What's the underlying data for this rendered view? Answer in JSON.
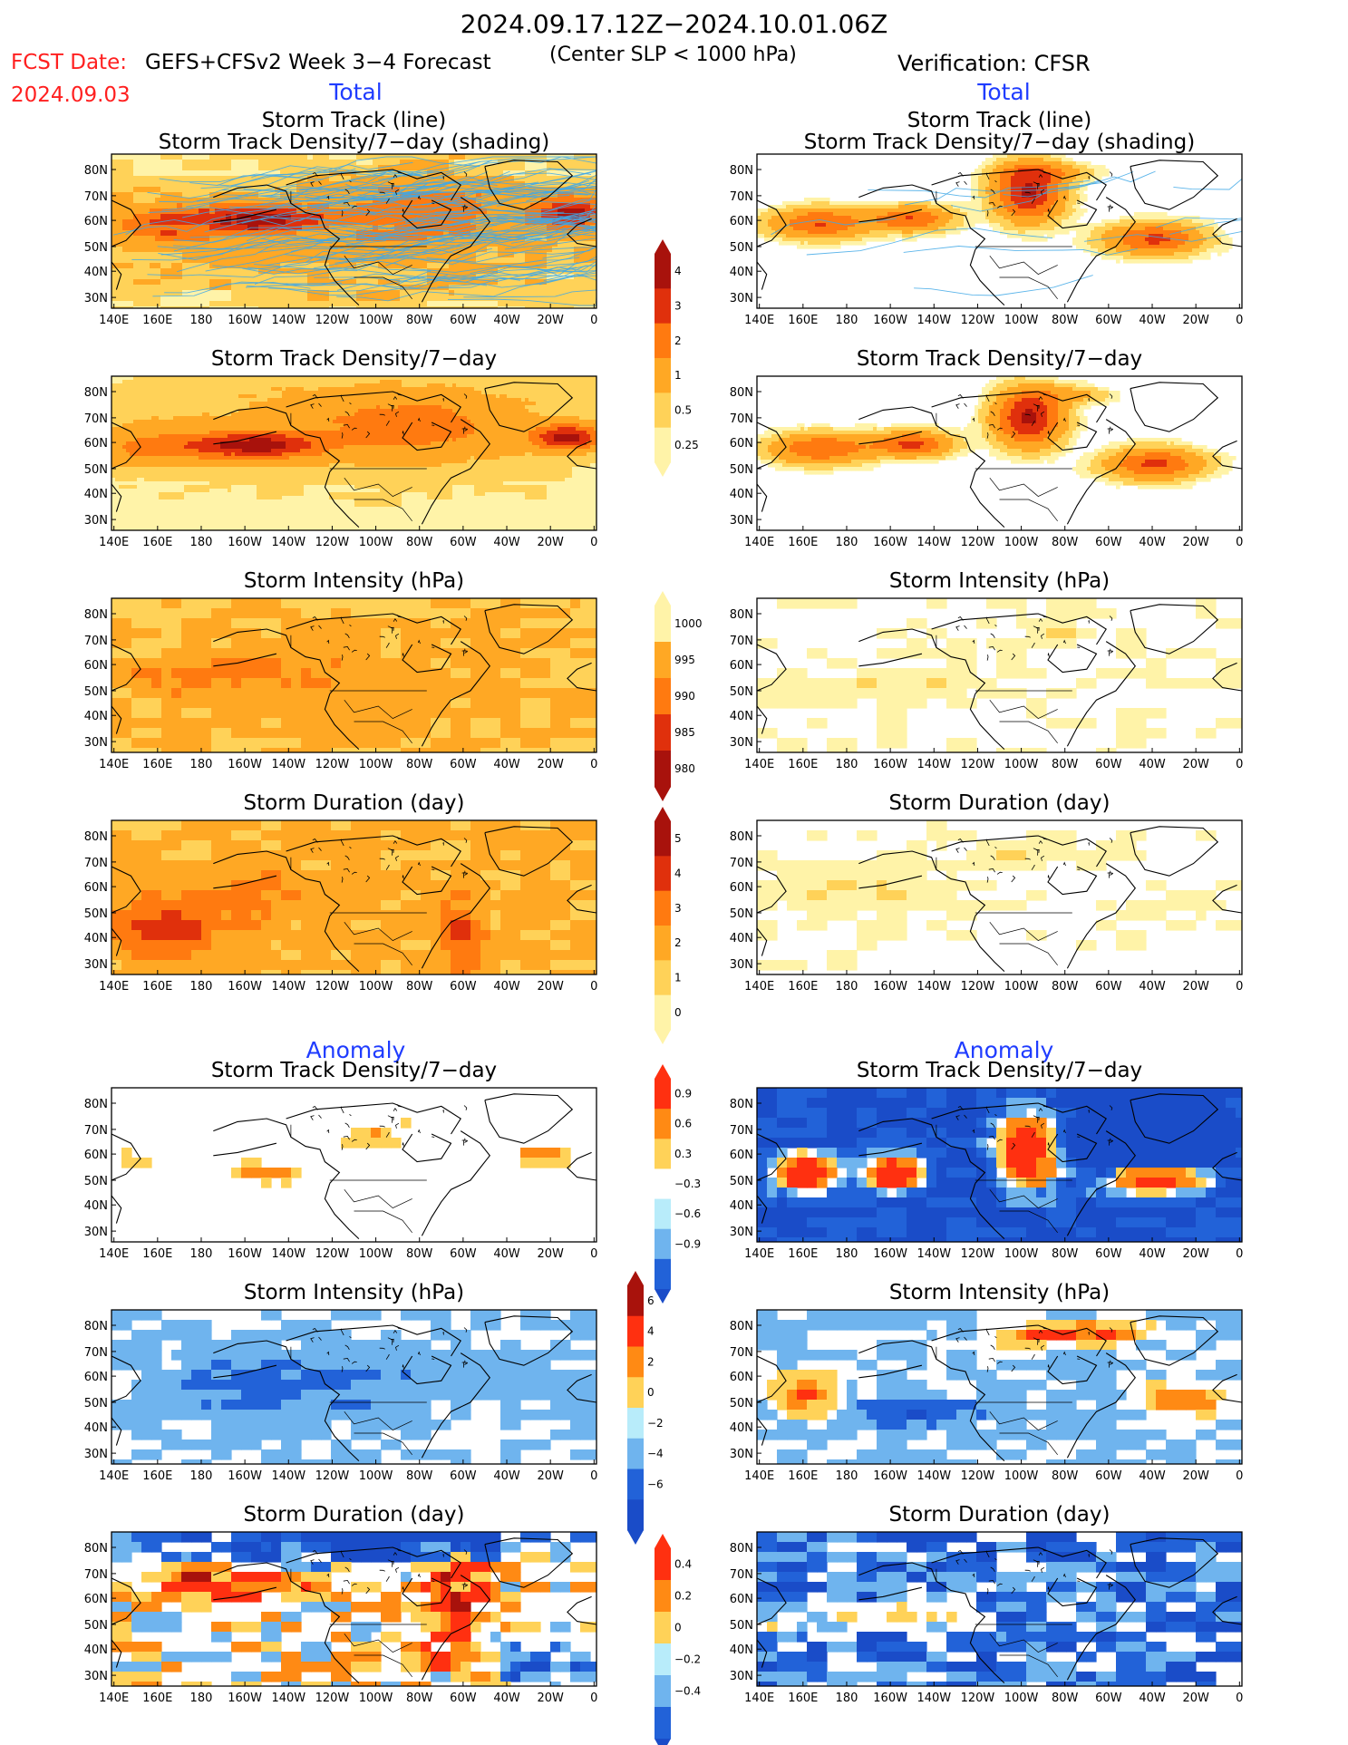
{
  "header": {
    "period": "2024.09.17.12Z−2024.10.01.06Z",
    "fcst_label": "FCST Date:",
    "fcst_date": "2024.09.03",
    "model": "GEFS+CFSv2 Week 3−4 Forecast",
    "criterion": "(Center SLP < 1000 hPa)",
    "verification": "Verification: CFSR",
    "left_total": "Total",
    "right_total": "Total",
    "left_anomaly": "Anomaly",
    "right_anomaly": "Anomaly"
  },
  "colors": {
    "header_red": "#ff2020",
    "section_blue": "#1f3cff",
    "track_line": "#3fa8e6"
  },
  "axes": {
    "lon_labels": [
      "140E",
      "160E",
      "180",
      "160W",
      "140W",
      "120W",
      "100W",
      "80W",
      "60W",
      "40W",
      "20W",
      "0"
    ],
    "lat_labels": [
      "80N",
      "70N",
      "60N",
      "50N",
      "40N",
      "30N"
    ]
  },
  "panels": {
    "track": {
      "title1": "Storm Track (line)",
      "title2": "Storm Track Density/7−day (shading)"
    },
    "density": {
      "title": "Storm Track Density/7−day"
    },
    "intensity": {
      "title": "Storm Intensity (hPa)"
    },
    "duration": {
      "title": "Storm Duration (day)"
    },
    "anom_density": {
      "title": "Storm Track Density/7−day"
    },
    "anom_intensity": {
      "title": "Storm Intensity (hPa)"
    },
    "anom_duration": {
      "title": "Storm Duration (day)"
    }
  },
  "colorbars": {
    "density": {
      "labels": [
        "4",
        "3",
        "2",
        "1",
        "0.5",
        "0.25"
      ],
      "colors": [
        "#a8120c",
        "#e0300c",
        "#ff7a10",
        "#ffa824",
        "#ffd258",
        "#fff3a8"
      ]
    },
    "intensity": {
      "labels": [
        "1000",
        "995",
        "990",
        "985",
        "980"
      ],
      "colors": [
        "#fff3a8",
        "#ffa824",
        "#ff7a10",
        "#e0300c",
        "#a8120c"
      ]
    },
    "duration": {
      "labels": [
        "5",
        "4",
        "3",
        "2",
        "1",
        "0"
      ],
      "colors": [
        "#a8120c",
        "#e0300c",
        "#ff7a10",
        "#ffa824",
        "#ffd258",
        "#fff3a8"
      ]
    },
    "anom_density": {
      "labels": [
        "0.9",
        "0.6",
        "0.3",
        "−0.3",
        "−0.6",
        "−0.9"
      ],
      "colors": [
        "#ff3010",
        "#ff8a14",
        "#ffd258",
        "#ffffff",
        "#b8ecfa",
        "#6fb4ee",
        "#2262d8"
      ]
    },
    "anom_intensity": {
      "labels": [
        "6",
        "4",
        "2",
        "0",
        "−2",
        "−4",
        "−6"
      ],
      "colors": [
        "#a8120c",
        "#ff3010",
        "#ff8a14",
        "#ffd258",
        "#b8ecfa",
        "#6fb4ee",
        "#2262d8",
        "#1a4cc8"
      ]
    },
    "anom_duration": {
      "labels": [
        "0.4",
        "0.2",
        "0",
        "−0.2",
        "−0.4"
      ],
      "colors": [
        "#ff3010",
        "#ff8a14",
        "#ffd258",
        "#b8ecfa",
        "#6fb4ee",
        "#2262d8"
      ]
    }
  }
}
